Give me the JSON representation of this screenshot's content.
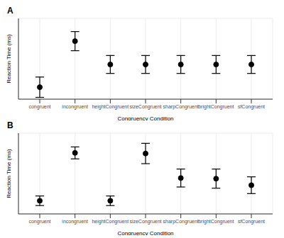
{
  "chart_data": [
    {
      "type": "scatter",
      "title": "A",
      "x_label": "Congruency Condition",
      "y_label": "Reaction Time (ms)",
      "categories": [
        "congruent",
        "incongruent",
        "heightCongruent",
        "sizeCongruent",
        "sharpCongruent",
        "brightCongruent",
        "sfCongruent"
      ],
      "values": [
        20,
        97,
        58,
        58,
        58,
        58,
        58
      ],
      "errors": [
        17,
        16,
        15,
        15,
        15,
        15,
        15
      ],
      "color": "#000000",
      "marker": "circle",
      "ylim": [
        0,
        135
      ],
      "yticks": [
        25,
        50,
        75,
        100,
        125
      ],
      "grid": true,
      "tick_labels": "x"
    },
    {
      "type": "scatter",
      "title": "B",
      "x_label": "Congruency Condition",
      "y_label": "Reaction Time (ms)",
      "categories": [
        "congruent",
        "incongruent",
        "heightCongruent",
        "sizeCongruent",
        "sharpCongruent",
        "brightCongruent",
        "sfCongruent"
      ],
      "values": [
        22,
        102,
        22,
        101,
        60,
        59,
        48
      ],
      "errors": [
        8,
        10,
        8,
        17,
        15,
        16,
        14
      ],
      "color": "#000000",
      "marker": "circle",
      "ylim": [
        0,
        135
      ],
      "yticks": [
        25,
        50,
        75,
        100,
        125
      ],
      "grid": true,
      "tick_labels": "x"
    }
  ]
}
